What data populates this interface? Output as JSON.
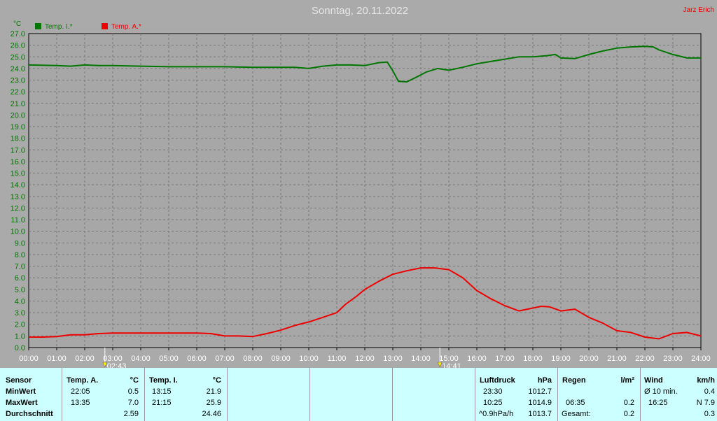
{
  "header": {
    "title": "Sonntag, 20.11.2022",
    "author": "Jarz Erich",
    "unit": "°C"
  },
  "chart_data": {
    "type": "line",
    "title": "Sonntag, 20.11.2022",
    "ylabel": "°C",
    "ylim": [
      0,
      27
    ],
    "xlim": [
      0,
      24
    ],
    "grid": true,
    "legend_placement": "top-left",
    "y_ticks": [
      "0.0",
      "1.0",
      "2.0",
      "3.0",
      "4.0",
      "5.0",
      "6.0",
      "7.0",
      "8.0",
      "9.0",
      "10.0",
      "11.0",
      "12.0",
      "13.0",
      "14.0",
      "15.0",
      "16.0",
      "17.0",
      "18.0",
      "19.0",
      "20.0",
      "21.0",
      "22.0",
      "23.0",
      "24.0",
      "25.0",
      "26.0",
      "27.0"
    ],
    "x_ticks": [
      "00:00",
      "01:00",
      "02:00",
      "03:00",
      "04:00",
      "05:00",
      "06:00",
      "07:00",
      "08:00",
      "09:00",
      "10:00",
      "11:00",
      "12:00",
      "13:00",
      "14:00",
      "15:00",
      "16:00",
      "17:00",
      "18:00",
      "19:00",
      "20:00",
      "21:00",
      "22:00",
      "23:00",
      "24:00"
    ],
    "markers": [
      {
        "label": "02:43",
        "x": 2.72
      },
      {
        "label": "14:41",
        "x": 14.68
      }
    ],
    "series": [
      {
        "name": "Temp. I.*",
        "color": "#007700",
        "points": [
          [
            0,
            24.3
          ],
          [
            1,
            24.25
          ],
          [
            1.5,
            24.2
          ],
          [
            2,
            24.3
          ],
          [
            2.5,
            24.25
          ],
          [
            3,
            24.25
          ],
          [
            4,
            24.2
          ],
          [
            5,
            24.15
          ],
          [
            6,
            24.15
          ],
          [
            7,
            24.15
          ],
          [
            8,
            24.1
          ],
          [
            9,
            24.1
          ],
          [
            9.5,
            24.1
          ],
          [
            10,
            24.0
          ],
          [
            10.5,
            24.2
          ],
          [
            11,
            24.3
          ],
          [
            11.5,
            24.3
          ],
          [
            12,
            24.25
          ],
          [
            12.5,
            24.5
          ],
          [
            12.8,
            24.55
          ],
          [
            13.0,
            23.8
          ],
          [
            13.2,
            22.9
          ],
          [
            13.5,
            22.85
          ],
          [
            13.8,
            23.2
          ],
          [
            14.2,
            23.7
          ],
          [
            14.6,
            24.0
          ],
          [
            15,
            23.85
          ],
          [
            15.5,
            24.1
          ],
          [
            16,
            24.4
          ],
          [
            16.5,
            24.6
          ],
          [
            17,
            24.8
          ],
          [
            17.5,
            25.0
          ],
          [
            18,
            25.0
          ],
          [
            18.5,
            25.1
          ],
          [
            18.8,
            25.2
          ],
          [
            19.0,
            24.9
          ],
          [
            19.5,
            24.85
          ],
          [
            20,
            25.2
          ],
          [
            20.5,
            25.5
          ],
          [
            21,
            25.75
          ],
          [
            21.5,
            25.85
          ],
          [
            22,
            25.9
          ],
          [
            22.3,
            25.85
          ],
          [
            22.5,
            25.6
          ],
          [
            23,
            25.2
          ],
          [
            23.5,
            24.9
          ],
          [
            24,
            24.9
          ]
        ]
      },
      {
        "name": "Temp. A.*",
        "color": "#ee0000",
        "points": [
          [
            0,
            0.9
          ],
          [
            0.5,
            0.9
          ],
          [
            1,
            0.95
          ],
          [
            1.5,
            1.1
          ],
          [
            2,
            1.1
          ],
          [
            2.5,
            1.2
          ],
          [
            3,
            1.25
          ],
          [
            4,
            1.25
          ],
          [
            5,
            1.25
          ],
          [
            6,
            1.25
          ],
          [
            6.5,
            1.2
          ],
          [
            7,
            1.0
          ],
          [
            7.5,
            1.0
          ],
          [
            8,
            0.95
          ],
          [
            8.5,
            1.2
          ],
          [
            9,
            1.5
          ],
          [
            9.5,
            1.9
          ],
          [
            10,
            2.2
          ],
          [
            10.5,
            2.6
          ],
          [
            11,
            3.0
          ],
          [
            11.3,
            3.7
          ],
          [
            11.7,
            4.4
          ],
          [
            12,
            5.0
          ],
          [
            12.5,
            5.7
          ],
          [
            13,
            6.3
          ],
          [
            13.5,
            6.6
          ],
          [
            14,
            6.85
          ],
          [
            14.5,
            6.85
          ],
          [
            15,
            6.7
          ],
          [
            15.5,
            6.0
          ],
          [
            16,
            4.9
          ],
          [
            16.5,
            4.2
          ],
          [
            17,
            3.6
          ],
          [
            17.5,
            3.15
          ],
          [
            18,
            3.4
          ],
          [
            18.3,
            3.55
          ],
          [
            18.6,
            3.5
          ],
          [
            19,
            3.15
          ],
          [
            19.5,
            3.3
          ],
          [
            20,
            2.6
          ],
          [
            20.5,
            2.1
          ],
          [
            21,
            1.45
          ],
          [
            21.5,
            1.3
          ],
          [
            22,
            0.9
          ],
          [
            22.5,
            0.75
          ],
          [
            23,
            1.2
          ],
          [
            23.5,
            1.3
          ],
          [
            24,
            1.0
          ]
        ]
      }
    ]
  },
  "table": {
    "sensor": {
      "header": "Sensor",
      "min": "MinWert",
      "max": "MaxWert",
      "avg": "Durchschnitt"
    },
    "temp_a": {
      "header": "Temp. A.",
      "unit": "°C",
      "min_time": "22:05",
      "min_val": "0.5",
      "max_time": "13:35",
      "max_val": "7.0",
      "avg": "2.59"
    },
    "temp_i": {
      "header": "Temp. I.",
      "unit": "°C",
      "min_time": "13:15",
      "min_val": "21.9",
      "max_time": "21:15",
      "max_val": "25.9",
      "avg": "24.46"
    },
    "pressure": {
      "header": "Luftdruck",
      "unit": "hPa",
      "min_time": "23:30",
      "min_val": "1012.7",
      "max_time": "10:25",
      "max_val": "1014.9",
      "trend": "^0.9hPa/h",
      "avg": "1013.7"
    },
    "rain": {
      "header": "Regen",
      "unit": "l/m²",
      "time": "06:35",
      "val": "0.2",
      "total_label": "Gesamt:",
      "total": "0.2"
    },
    "wind": {
      "header": "Wind",
      "unit": "km/h",
      "avg_label": "Ø 10 min.",
      "avg_val": "0.4",
      "max_time": "16:25",
      "max_val": "N 7.9",
      "last": "0.3"
    }
  }
}
